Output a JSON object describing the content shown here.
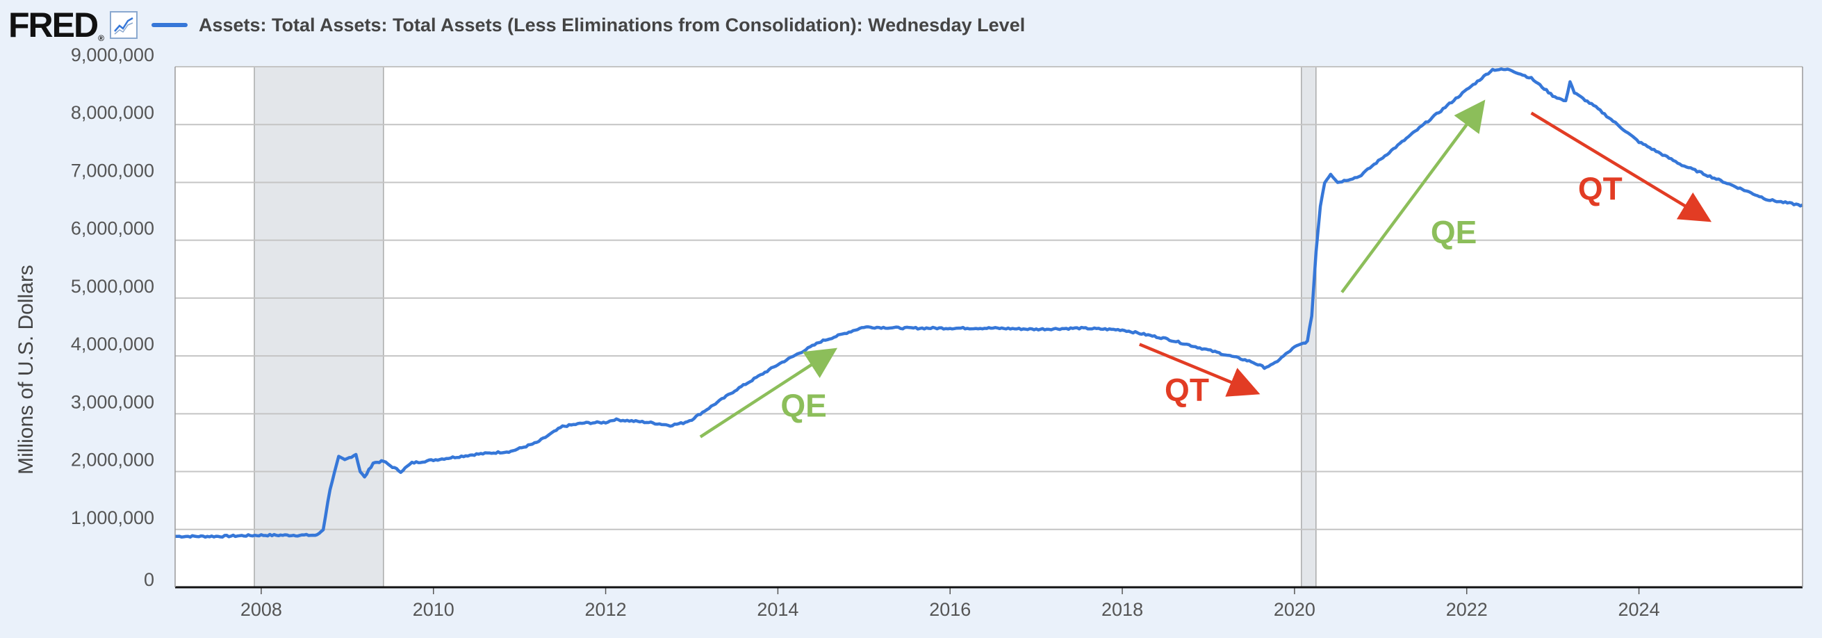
{
  "header": {
    "logo_text": "FRED",
    "logo_mark": "®",
    "logo_icon": "line-chart-icon",
    "series_label": "Assets: Total Assets: Total Assets (Less Eliminations from Consolidation): Wednesday Level"
  },
  "colors": {
    "series": "#3677d8",
    "qe": "#8cbe5a",
    "qt": "#e23c24",
    "grid": "#c4c4c4",
    "recession": "#e3e6ea",
    "background": "#eaf1fa"
  },
  "chart_data": {
    "type": "line",
    "title": "Assets: Total Assets: Total Assets (Less Eliminations from Consolidation): Wednesday Level",
    "ylabel": "Millions of U.S. Dollars",
    "xlabel": "",
    "xlim": [
      2007.0,
      2025.9
    ],
    "ylim": [
      0,
      9000000
    ],
    "x_ticks": [
      2008,
      2010,
      2012,
      2014,
      2016,
      2018,
      2020,
      2022,
      2024
    ],
    "x_tick_labels": [
      "2008",
      "2010",
      "2012",
      "2014",
      "2016",
      "2018",
      "2020",
      "2022",
      "2024"
    ],
    "y_ticks": [
      0,
      1000000,
      2000000,
      3000000,
      4000000,
      5000000,
      6000000,
      7000000,
      8000000,
      9000000
    ],
    "y_tick_labels": [
      "0",
      "1,000,000",
      "2,000,000",
      "3,000,000",
      "4,000,000",
      "5,000,000",
      "6,000,000",
      "7,000,000",
      "8,000,000",
      "9,000,000"
    ],
    "grid": true,
    "recessions": [
      [
        2007.92,
        2009.42
      ],
      [
        2020.08,
        2020.25
      ]
    ],
    "series": [
      {
        "name": "Assets: Total Assets: Total Assets (Less Eliminations from Consolidation): Wednesday Level",
        "x": [
          2007.0,
          2007.5,
          2008.0,
          2008.4,
          2008.65,
          2008.72,
          2008.8,
          2008.9,
          2008.97,
          2009.1,
          2009.15,
          2009.2,
          2009.3,
          2009.42,
          2009.5,
          2009.62,
          2009.75,
          2010.0,
          2010.5,
          2010.9,
          2011.2,
          2011.5,
          2011.75,
          2012.0,
          2012.1,
          2012.5,
          2012.75,
          2012.9,
          2013.0,
          2013.5,
          2014.0,
          2014.5,
          2014.9,
          2015.0,
          2015.5,
          2016.0,
          2016.5,
          2017.0,
          2017.5,
          2018.0,
          2018.5,
          2019.0,
          2019.5,
          2019.65,
          2019.75,
          2020.0,
          2020.15,
          2020.2,
          2020.25,
          2020.3,
          2020.35,
          2020.42,
          2020.5,
          2020.75,
          2021.0,
          2021.5,
          2022.0,
          2022.3,
          2022.5,
          2022.75,
          2023.0,
          2023.15,
          2023.2,
          2023.25,
          2023.5,
          2024.0,
          2024.5,
          2025.0,
          2025.5,
          2025.9
        ],
        "values": [
          880000,
          880000,
          900000,
          900000,
          900000,
          1000000,
          1700000,
          2250000,
          2200000,
          2300000,
          2000000,
          1900000,
          2150000,
          2180000,
          2100000,
          2000000,
          2150000,
          2200000,
          2300000,
          2350000,
          2500000,
          2780000,
          2840000,
          2850000,
          2900000,
          2850000,
          2800000,
          2840000,
          2900000,
          3400000,
          3850000,
          4250000,
          4450000,
          4500000,
          4480000,
          4480000,
          4480000,
          4460000,
          4480000,
          4450000,
          4300000,
          4100000,
          3900000,
          3800000,
          3850000,
          4150000,
          4250000,
          4700000,
          5800000,
          6600000,
          7000000,
          7150000,
          7000000,
          7100000,
          7400000,
          8000000,
          8600000,
          8950000,
          8950000,
          8800000,
          8500000,
          8400000,
          8750000,
          8550000,
          8300000,
          7700000,
          7300000,
          7000000,
          6700000,
          6600000
        ]
      }
    ],
    "annotations": [
      {
        "text": "QE",
        "kind": "qe",
        "arrow_from": [
          2013.1,
          2600000
        ],
        "arrow_to": [
          2014.6,
          4050000
        ],
        "label_at": [
          2014.3,
          2950000
        ]
      },
      {
        "text": "QT",
        "kind": "qt",
        "arrow_from": [
          2018.2,
          4200000
        ],
        "arrow_to": [
          2019.5,
          3400000
        ],
        "label_at": [
          2018.75,
          3220000
        ]
      },
      {
        "text": "QE",
        "kind": "qe",
        "arrow_from": [
          2020.55,
          5100000
        ],
        "arrow_to": [
          2022.15,
          8300000
        ],
        "label_at": [
          2021.85,
          5950000
        ]
      },
      {
        "text": "QT",
        "kind": "qt",
        "arrow_from": [
          2022.75,
          8200000
        ],
        "arrow_to": [
          2024.75,
          6400000
        ],
        "label_at": [
          2023.55,
          6700000
        ]
      }
    ]
  }
}
